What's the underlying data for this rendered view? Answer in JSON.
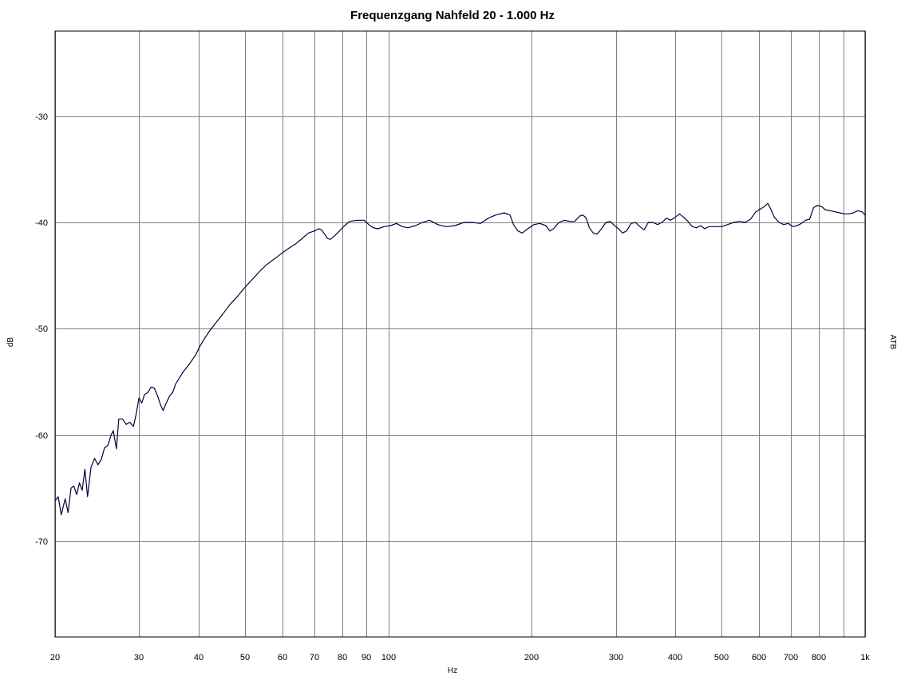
{
  "chart_data": {
    "type": "line",
    "title": "Frequenzgang  Nahfeld  20 - 1.000 Hz",
    "xlabel": "Hz",
    "ylabel": "dB",
    "right_label": "ATB",
    "x_scale": "log",
    "xlim": [
      20,
      1000
    ],
    "ylim": [
      -79,
      -22
    ],
    "grid": true,
    "x_ticks": [
      {
        "value": 20,
        "label": "20"
      },
      {
        "value": 30,
        "label": "30"
      },
      {
        "value": 40,
        "label": "40"
      },
      {
        "value": 50,
        "label": "50"
      },
      {
        "value": 60,
        "label": "60"
      },
      {
        "value": 70,
        "label": "70"
      },
      {
        "value": 80,
        "label": "80"
      },
      {
        "value": 90,
        "label": "90"
      },
      {
        "value": 100,
        "label": "100"
      },
      {
        "value": 200,
        "label": "200"
      },
      {
        "value": 300,
        "label": "300"
      },
      {
        "value": 400,
        "label": "400"
      },
      {
        "value": 500,
        "label": "500"
      },
      {
        "value": 600,
        "label": "600"
      },
      {
        "value": 700,
        "label": "700"
      },
      {
        "value": 800,
        "label": "800"
      },
      {
        "value": 900,
        "label": ""
      },
      {
        "value": 1000,
        "label": "1k"
      }
    ],
    "y_ticks": [
      {
        "value": -30,
        "label": "-30"
      },
      {
        "value": -40,
        "label": "-40"
      },
      {
        "value": -50,
        "label": "-50"
      },
      {
        "value": -60,
        "label": "-60"
      },
      {
        "value": -70,
        "label": "-70"
      }
    ],
    "series": [
      {
        "color": "#000040",
        "points": [
          [
            20,
            -66.2
          ],
          [
            20.3,
            -65.8
          ],
          [
            20.6,
            -67.5
          ],
          [
            21.0,
            -66.0
          ],
          [
            21.3,
            -67.3
          ],
          [
            21.6,
            -65.0
          ],
          [
            21.9,
            -64.8
          ],
          [
            22.2,
            -65.6
          ],
          [
            22.5,
            -64.5
          ],
          [
            22.8,
            -65.2
          ],
          [
            23.1,
            -63.2
          ],
          [
            23.4,
            -65.8
          ],
          [
            23.8,
            -63.0
          ],
          [
            24.2,
            -62.2
          ],
          [
            24.6,
            -62.8
          ],
          [
            25.0,
            -62.3
          ],
          [
            25.4,
            -61.2
          ],
          [
            25.8,
            -61.0
          ],
          [
            26.2,
            -60.0
          ],
          [
            26.5,
            -59.6
          ],
          [
            26.9,
            -61.3
          ],
          [
            27.2,
            -58.5
          ],
          [
            27.7,
            -58.5
          ],
          [
            28.2,
            -59.0
          ],
          [
            28.7,
            -58.8
          ],
          [
            29.2,
            -59.2
          ],
          [
            29.6,
            -58.0
          ],
          [
            30.0,
            -56.5
          ],
          [
            30.4,
            -57.0
          ],
          [
            30.8,
            -56.2
          ],
          [
            31.3,
            -56.0
          ],
          [
            31.8,
            -55.5
          ],
          [
            32.3,
            -55.6
          ],
          [
            32.8,
            -56.3
          ],
          [
            33.3,
            -57.2
          ],
          [
            33.7,
            -57.7
          ],
          [
            34.2,
            -57.0
          ],
          [
            34.8,
            -56.3
          ],
          [
            35.3,
            -56.0
          ],
          [
            35.8,
            -55.2
          ],
          [
            36.5,
            -54.6
          ],
          [
            37.2,
            -54.0
          ],
          [
            38.0,
            -53.5
          ],
          [
            38.7,
            -53.0
          ],
          [
            39.5,
            -52.4
          ],
          [
            40.3,
            -51.6
          ],
          [
            41.2,
            -50.9
          ],
          [
            42.2,
            -50.2
          ],
          [
            43.2,
            -49.6
          ],
          [
            44.3,
            -49.0
          ],
          [
            45.5,
            -48.3
          ],
          [
            46.8,
            -47.6
          ],
          [
            48.2,
            -47.0
          ],
          [
            49.6,
            -46.3
          ],
          [
            51.0,
            -45.7
          ],
          [
            52.5,
            -45.1
          ],
          [
            54.0,
            -44.5
          ],
          [
            55.5,
            -44.0
          ],
          [
            57.0,
            -43.6
          ],
          [
            58.6,
            -43.2
          ],
          [
            60.2,
            -42.8
          ],
          [
            62.0,
            -42.4
          ],
          [
            64.0,
            -42.0
          ],
          [
            66.0,
            -41.5
          ],
          [
            68.0,
            -41.0
          ],
          [
            70.0,
            -40.8
          ],
          [
            71.5,
            -40.6
          ],
          [
            72.5,
            -40.7
          ],
          [
            73.5,
            -41.1
          ],
          [
            74.5,
            -41.5
          ],
          [
            75.5,
            -41.6
          ],
          [
            77.0,
            -41.3
          ],
          [
            79.0,
            -40.8
          ],
          [
            81.0,
            -40.3
          ],
          [
            83.0,
            -39.9
          ],
          [
            86.0,
            -39.8
          ],
          [
            89.0,
            -39.8
          ],
          [
            91.0,
            -40.2
          ],
          [
            93.0,
            -40.5
          ],
          [
            95.0,
            -40.6
          ],
          [
            98.0,
            -40.4
          ],
          [
            101.0,
            -40.3
          ],
          [
            104.0,
            -40.1
          ],
          [
            107.0,
            -40.4
          ],
          [
            110.0,
            -40.5
          ],
          [
            114.0,
            -40.3
          ],
          [
            118.0,
            -40.0
          ],
          [
            122.0,
            -39.8
          ],
          [
            127.0,
            -40.2
          ],
          [
            132.0,
            -40.4
          ],
          [
            138.0,
            -40.3
          ],
          [
            144.0,
            -40.0
          ],
          [
            150.0,
            -40.0
          ],
          [
            156.0,
            -40.1
          ],
          [
            162.0,
            -39.6
          ],
          [
            168.0,
            -39.3
          ],
          [
            175.0,
            -39.1
          ],
          [
            180.0,
            -39.3
          ],
          [
            183.0,
            -40.2
          ],
          [
            187.0,
            -40.8
          ],
          [
            191.0,
            -41.0
          ],
          [
            196.0,
            -40.6
          ],
          [
            202.0,
            -40.2
          ],
          [
            208.0,
            -40.1
          ],
          [
            214.0,
            -40.3
          ],
          [
            218.0,
            -40.8
          ],
          [
            222.0,
            -40.6
          ],
          [
            228.0,
            -40.0
          ],
          [
            234.0,
            -39.8
          ],
          [
            240.0,
            -39.9
          ],
          [
            246.0,
            -39.9
          ],
          [
            252.0,
            -39.4
          ],
          [
            256.0,
            -39.3
          ],
          [
            260.0,
            -39.6
          ],
          [
            264.0,
            -40.5
          ],
          [
            269.0,
            -41.0
          ],
          [
            274.0,
            -41.1
          ],
          [
            280.0,
            -40.6
          ],
          [
            286.0,
            -40.0
          ],
          [
            292.0,
            -39.9
          ],
          [
            298.0,
            -40.3
          ],
          [
            304.0,
            -40.6
          ],
          [
            310.0,
            -41.0
          ],
          [
            316.0,
            -40.8
          ],
          [
            323.0,
            -40.1
          ],
          [
            330.0,
            -40.0
          ],
          [
            337.0,
            -40.4
          ],
          [
            344.0,
            -40.7
          ],
          [
            351.0,
            -40.0
          ],
          [
            359.0,
            -40.0
          ],
          [
            367.0,
            -40.2
          ],
          [
            375.0,
            -40.0
          ],
          [
            383.0,
            -39.6
          ],
          [
            391.0,
            -39.8
          ],
          [
            400.0,
            -39.5
          ],
          [
            408.0,
            -39.2
          ],
          [
            416.0,
            -39.5
          ],
          [
            425.0,
            -39.9
          ],
          [
            434.0,
            -40.4
          ],
          [
            443.0,
            -40.5
          ],
          [
            452.0,
            -40.3
          ],
          [
            461.0,
            -40.6
          ],
          [
            470.0,
            -40.4
          ],
          [
            480.0,
            -40.4
          ],
          [
            490.0,
            -40.4
          ],
          [
            500.0,
            -40.4
          ],
          [
            515.0,
            -40.2
          ],
          [
            530.0,
            -40.0
          ],
          [
            545.0,
            -39.9
          ],
          [
            560.0,
            -40.0
          ],
          [
            575.0,
            -39.7
          ],
          [
            590.0,
            -39.0
          ],
          [
            605.0,
            -38.7
          ],
          [
            615.0,
            -38.5
          ],
          [
            625.0,
            -38.2
          ],
          [
            635.0,
            -38.8
          ],
          [
            645.0,
            -39.5
          ],
          [
            660.0,
            -40.0
          ],
          [
            675.0,
            -40.2
          ],
          [
            690.0,
            -40.1
          ],
          [
            705.0,
            -40.4
          ],
          [
            720.0,
            -40.3
          ],
          [
            735.0,
            -40.1
          ],
          [
            750.0,
            -39.8
          ],
          [
            765.0,
            -39.7
          ],
          [
            780.0,
            -38.6
          ],
          [
            795.0,
            -38.4
          ],
          [
            810.0,
            -38.5
          ],
          [
            825.0,
            -38.8
          ],
          [
            845.0,
            -38.9
          ],
          [
            865.0,
            -39.0
          ],
          [
            885.0,
            -39.1
          ],
          [
            905.0,
            -39.2
          ],
          [
            925.0,
            -39.2
          ],
          [
            945.0,
            -39.1
          ],
          [
            965.0,
            -38.9
          ],
          [
            985.0,
            -39.0
          ],
          [
            1000.0,
            -39.3
          ]
        ]
      }
    ]
  }
}
